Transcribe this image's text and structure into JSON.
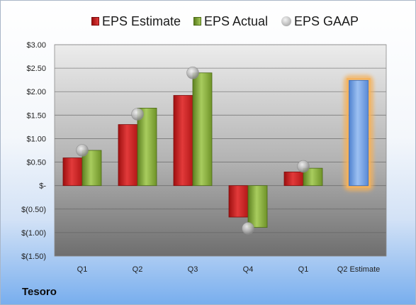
{
  "company": "Tesoro",
  "legend": {
    "estimate": "EPS Estimate",
    "actual": "EPS Actual",
    "gaap": "EPS GAAP"
  },
  "colors": {
    "estimate": "#cc2222",
    "actual": "#8cb43c",
    "gaap": "#b5b5b5",
    "forecast": "#6e9de0",
    "forecast_glow": "#f5b15a"
  },
  "chart_data": {
    "type": "bar",
    "categories": [
      "Q1",
      "Q2",
      "Q3",
      "Q4",
      "Q1",
      "Q2 Estimate"
    ],
    "series": [
      {
        "name": "EPS Estimate",
        "values": [
          0.59,
          1.3,
          1.92,
          -0.67,
          0.29,
          2.24
        ]
      },
      {
        "name": "EPS Actual",
        "values": [
          0.75,
          1.65,
          2.4,
          -0.89,
          0.37,
          null
        ]
      },
      {
        "name": "EPS GAAP",
        "values": [
          0.75,
          1.52,
          2.4,
          -0.91,
          0.41,
          null
        ]
      }
    ],
    "highlighted_category": "Q2 Estimate",
    "ylim": [
      -1.5,
      3.0
    ],
    "yticks": [
      3.0,
      2.5,
      2.0,
      1.5,
      1.0,
      0.5,
      0,
      -0.5,
      -1.0,
      -1.5
    ],
    "ytick_labels": [
      "$3.00",
      "$2.50",
      "$2.00",
      "$1.50",
      "$1.00",
      "$0.50",
      "$-",
      "$(0.50)",
      "$(1.00)",
      "$(1.50)"
    ],
    "grid": true,
    "legend_position": "top"
  }
}
